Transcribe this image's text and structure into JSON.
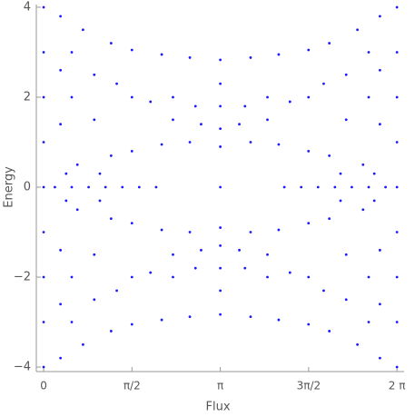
{
  "chart_data": {
    "type": "scatter",
    "xlabel": "Flux",
    "ylabel": "Energy",
    "xlim": [
      -0.13,
      6.41
    ],
    "ylim": [
      -4.1,
      4.06
    ],
    "xticks": [
      0,
      {
        "value": 1.5708,
        "label": "π/2"
      },
      {
        "value": 3.1416,
        "label": "π"
      },
      {
        "value": 4.7124,
        "label": "3π/2"
      },
      {
        "value": 6.2832,
        "label": "2 π"
      }
    ],
    "yticks": [
      {
        "value": -4,
        "label": "−4"
      },
      {
        "value": -2,
        "label": "−2"
      },
      0,
      2,
      4
    ],
    "series": [
      {
        "color": "#1a1aff",
        "x": [
          0.3,
          0.7,
          1.2,
          1.57,
          2.1,
          2.6,
          0.6,
          1.2,
          1.57,
          2.1,
          2.6,
          1.57,
          1.9,
          2.3,
          2.7,
          2.3,
          2.8,
          1.3,
          0.9,
          0.5,
          0.5,
          0.3,
          0.3,
          0.9,
          0.4,
          1.0
        ],
        "values": [
          -3.8,
          -3.5,
          -3.2,
          -3.05,
          -2.95,
          -2.88,
          -0.5,
          -0.7,
          -0.8,
          -0.95,
          -1.0,
          -2.0,
          -1.9,
          -2.0,
          -1.8,
          -1.5,
          -1.4,
          -2.3,
          -2.5,
          -3.0,
          -2.0,
          -2.6,
          -1.4,
          -1.5,
          -0.3,
          -0.3
        ]
      },
      {
        "color": "#1a1aff",
        "x": [
          0.3,
          0.7,
          1.2,
          1.57,
          2.1,
          2.6,
          0.6,
          1.2,
          1.57,
          2.1,
          2.6,
          1.57,
          1.9,
          2.3,
          2.7,
          2.3,
          2.8,
          1.3,
          0.9,
          0.5,
          0.5,
          0.3,
          0.3,
          0.9,
          0.4,
          1.0
        ],
        "values": [
          3.8,
          3.5,
          3.2,
          3.05,
          2.95,
          2.88,
          0.5,
          0.7,
          0.8,
          0.95,
          1.0,
          2.0,
          1.9,
          2.0,
          1.8,
          1.5,
          1.4,
          2.3,
          2.5,
          3.0,
          2.0,
          2.6,
          1.4,
          1.5,
          0.3,
          0.3
        ]
      },
      {
        "color": "#1a1aff",
        "x": [
          5.98,
          5.58,
          5.08,
          4.71,
          4.18,
          3.68,
          5.68,
          5.08,
          4.71,
          4.18,
          3.68,
          4.71,
          4.38,
          3.98,
          3.58,
          3.98,
          3.48,
          4.98,
          5.38,
          5.78,
          5.78,
          5.98,
          5.98,
          5.38,
          5.88,
          5.28
        ],
        "values": [
          -3.8,
          -3.5,
          -3.2,
          -3.05,
          -2.95,
          -2.88,
          -0.5,
          -0.7,
          -0.8,
          -0.95,
          -1.0,
          -2.0,
          -1.9,
          -2.0,
          -1.8,
          -1.5,
          -1.4,
          -2.3,
          -2.5,
          -3.0,
          -2.0,
          -2.6,
          -1.4,
          -1.5,
          -0.3,
          -0.3
        ]
      },
      {
        "color": "#1a1aff",
        "x": [
          5.98,
          5.58,
          5.08,
          4.71,
          4.18,
          3.68,
          5.68,
          5.08,
          4.71,
          4.18,
          3.68,
          4.71,
          4.38,
          3.98,
          3.58,
          3.98,
          3.48,
          4.98,
          5.38,
          5.78,
          5.78,
          5.98,
          5.98,
          5.38,
          5.88,
          5.28
        ],
        "values": [
          3.8,
          3.5,
          3.2,
          3.05,
          2.95,
          2.88,
          0.5,
          0.7,
          0.8,
          0.95,
          1.0,
          2.0,
          1.9,
          2.0,
          1.8,
          1.5,
          1.4,
          2.3,
          2.5,
          3.0,
          2.0,
          2.6,
          1.4,
          1.5,
          0.3,
          0.3
        ]
      },
      {
        "color": "#1a1aff",
        "x": [
          0.2,
          0.5,
          0.8,
          1.1,
          1.4,
          1.7,
          2.0,
          4.28,
          4.58,
          4.88,
          5.18,
          5.48,
          5.78,
          6.08
        ],
        "values": [
          0,
          0,
          0,
          0,
          0,
          0,
          0,
          0,
          0,
          0,
          0,
          0,
          0,
          0
        ]
      },
      {
        "color": "#1a1aff",
        "x": [
          3.1416,
          3.1416,
          3.1416,
          3.1416,
          3.1416,
          3.1416,
          3.1416,
          3.1416,
          3.1416,
          3.1416,
          3.1416
        ],
        "values": [
          -2.83,
          -2.3,
          -1.8,
          -1.3,
          -0.9,
          0,
          0.9,
          1.3,
          1.8,
          2.3,
          2.83
        ]
      },
      {
        "color": "#1a1aff",
        "x": [
          0,
          0,
          0,
          0,
          0,
          0,
          0,
          0,
          0,
          6.2832,
          6.2832,
          6.2832,
          6.2832,
          6.2832,
          6.2832,
          6.2832,
          6.2832,
          6.2832
        ],
        "values": [
          -4,
          -3,
          -2,
          -1,
          0,
          1,
          2,
          3,
          4,
          -4,
          -3,
          -2,
          -1,
          0,
          1,
          2,
          3,
          4
        ]
      }
    ]
  }
}
